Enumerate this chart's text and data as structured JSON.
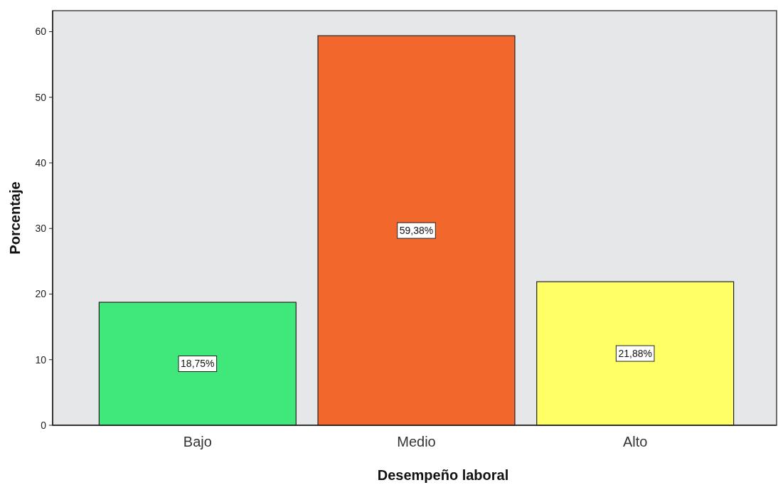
{
  "chart_data": {
    "type": "bar",
    "xlabel": "Desempeño laboral",
    "ylabel": "Porcentaje",
    "categories": [
      "Bajo",
      "Medio",
      "Alto"
    ],
    "values": [
      18.75,
      59.38,
      21.88
    ],
    "value_labels": [
      "18,75%",
      "59,38%",
      "21,88%"
    ],
    "colors": [
      "#40e87c",
      "#f2672c",
      "#ffff66"
    ],
    "ylim": [
      0,
      63.2
    ],
    "yticks": [
      0,
      10,
      20,
      30,
      40,
      50,
      60
    ],
    "grid": false
  }
}
